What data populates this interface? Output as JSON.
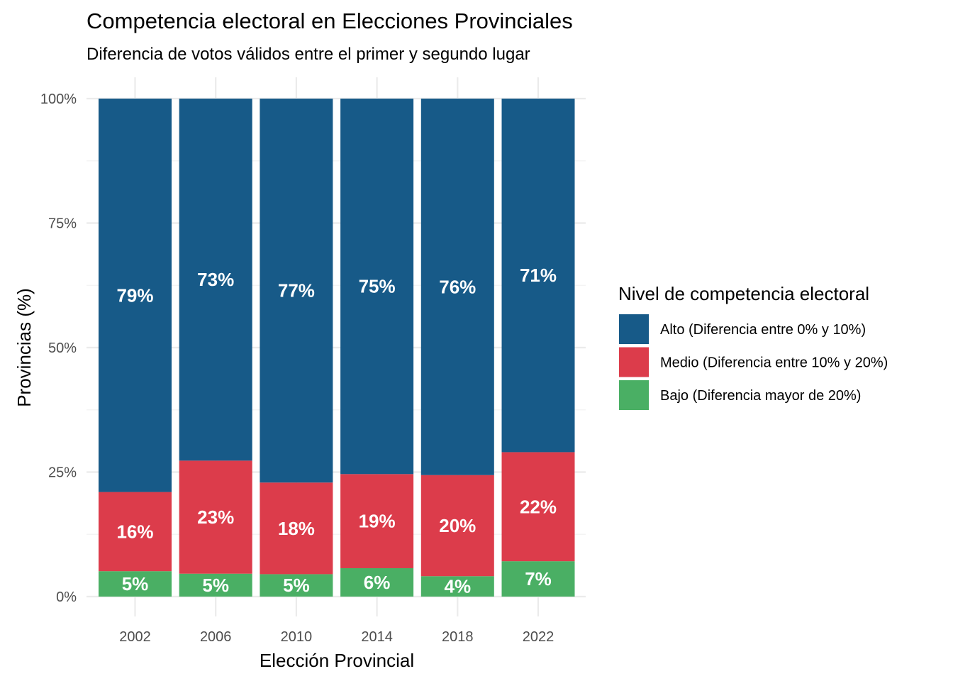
{
  "chart_data": {
    "type": "bar",
    "stacked": true,
    "title": "Competencia electoral en Elecciones Provinciales",
    "subtitle": "Diferencia de votos válidos entre el primer y segundo lugar",
    "xlabel": "Elección Provincial",
    "ylabel": "Provincias (%)",
    "ylim": [
      0,
      100
    ],
    "y_ticks": [
      "0%",
      "25%",
      "50%",
      "75%",
      "100%"
    ],
    "y_tick_values": [
      0,
      25,
      50,
      75,
      100
    ],
    "grid": true,
    "legend_position": "right",
    "legend_title": "Nivel de competencia electoral",
    "categories": [
      "2002",
      "2006",
      "2010",
      "2014",
      "2018",
      "2022"
    ],
    "series": [
      {
        "name": "Alto (Diferencia entre 0% y 10%)",
        "color": "#175a88",
        "values": [
          79,
          72.7,
          77.1,
          75.4,
          75.6,
          71
        ],
        "labels": [
          "79%",
          "73%",
          "77%",
          "75%",
          "76%",
          "71%"
        ]
      },
      {
        "name": "Medio (Diferencia entre 10% y 20%)",
        "color": "#dc3c4b",
        "values": [
          15.9,
          22.7,
          18.4,
          18.9,
          20.3,
          21.9
        ],
        "labels": [
          "16%",
          "23%",
          "18%",
          "19%",
          "20%",
          "22%"
        ]
      },
      {
        "name": "Bajo (Diferencia mayor de 20%)",
        "color": "#4aaf64",
        "values": [
          5.1,
          4.6,
          4.5,
          5.7,
          4.1,
          7.1
        ],
        "labels": [
          "5%",
          "5%",
          "5%",
          "6%",
          "4%",
          "7%"
        ]
      }
    ]
  }
}
